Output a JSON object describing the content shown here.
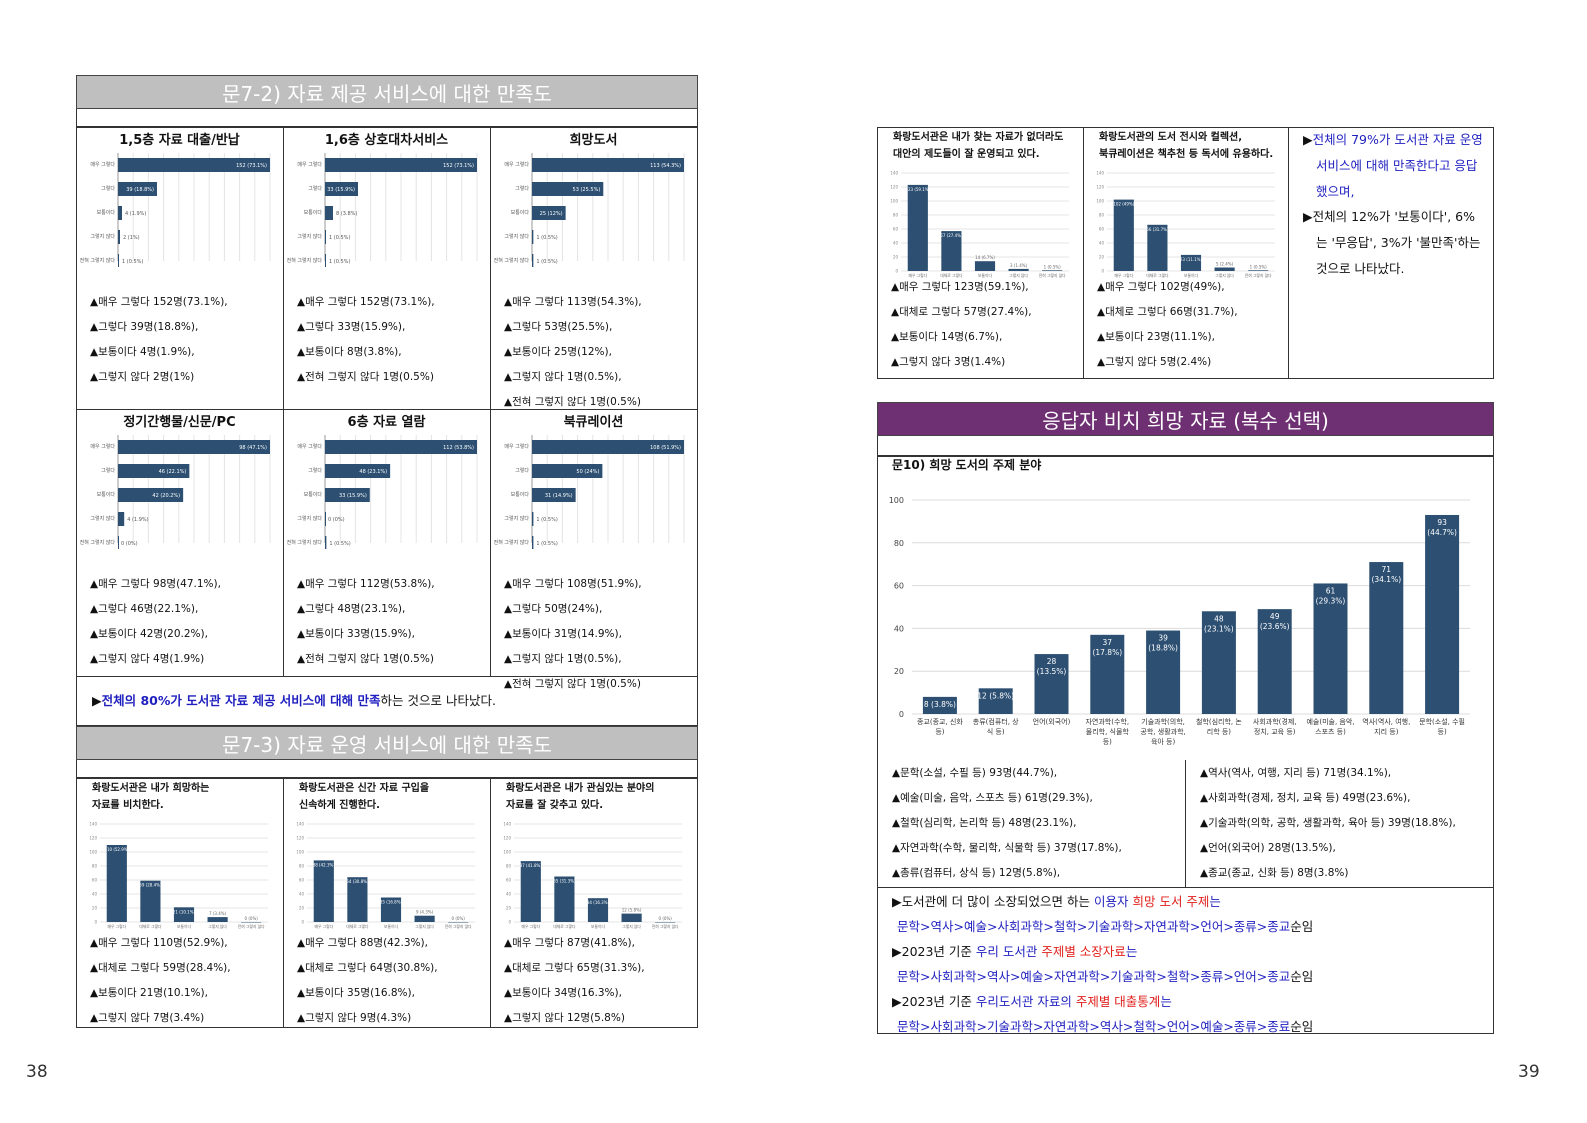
{
  "left": {
    "section1_title": "문7-2) 자료 제공 서비스에 대한 만족도",
    "hbar_charts": [
      {
        "title": "1,5층 자료 대출/반납",
        "cats": [
          "매우 그렇다",
          "그렇다",
          "보통이다",
          "그렇지 않다",
          "전혀 그렇지 않다"
        ],
        "values": [
          152,
          39,
          4,
          2,
          1
        ],
        "pct": [
          "73.1%",
          "18.8%",
          "1.9%",
          "1%",
          "0.5%"
        ],
        "max": 152,
        "stats": [
          "▲매우 그렇다 152명(73.1%),",
          "▲그렇다 39명(18.8%),",
          "▲보통이다 4명(1.9%),",
          "▲그렇지 않다 2명(1%)"
        ]
      },
      {
        "title": "1,6층 상호대차서비스",
        "cats": [
          "매우 그렇다",
          "그렇다",
          "보통이다",
          "그렇지 않다",
          "전혀 그렇지 않다"
        ],
        "values": [
          152,
          33,
          8,
          1,
          1
        ],
        "pct": [
          "73.1%",
          "15.9%",
          "3.8%",
          "0.5%",
          "0.5%"
        ],
        "max": 152,
        "stats": [
          "▲매우 그렇다 152명(73.1%),",
          "▲그렇다 33명(15.9%),",
          "▲보통이다 8명(3.8%),",
          "▲전혀 그렇지 않다 1명(0.5%)"
        ]
      },
      {
        "title": "희망도서",
        "cats": [
          "매우 그렇다",
          "그렇다",
          "보통이다",
          "그렇지 않다",
          "전혀 그렇지 않다"
        ],
        "values": [
          113,
          53,
          25,
          1,
          1
        ],
        "pct": [
          "54.3%",
          "25.5%",
          "12%",
          "0.5%",
          "0.5%"
        ],
        "max": 113,
        "stats": [
          "▲매우 그렇다 113명(54.3%),",
          "▲그렇다 53명(25.5%),",
          "▲보통이다 25명(12%),",
          "▲그렇지 않다 1명(0.5%),",
          "▲전혀 그렇지 않다 1명(0.5%)"
        ]
      },
      {
        "title": "정기간행물/신문/PC",
        "cats": [
          "매우 그렇다",
          "그렇다",
          "보통이다",
          "그렇지 않다",
          "전혀 그렇지 않다"
        ],
        "values": [
          98,
          46,
          42,
          4,
          0
        ],
        "pct": [
          "47.1%",
          "22.1%",
          "20.2%",
          "1.9%",
          "0%"
        ],
        "max": 98,
        "stats": [
          "▲매우 그렇다 98명(47.1%),",
          "▲그렇다 46명(22.1%),",
          "▲보통이다 42명(20.2%),",
          "▲그렇지 않다 4명(1.9%)"
        ]
      },
      {
        "title": "6층 자료 열람",
        "cats": [
          "매우 그렇다",
          "그렇다",
          "보통이다",
          "그렇지 않다",
          "전혀 그렇지 않다"
        ],
        "values": [
          112,
          48,
          33,
          0,
          1
        ],
        "pct": [
          "53.8%",
          "23.1%",
          "15.9%",
          "0%",
          "0.5%"
        ],
        "max": 112,
        "stats": [
          "▲매우 그렇다 112명(53.8%),",
          "▲그렇다 48명(23.1%),",
          "▲보통이다 33명(15.9%),",
          "▲전혀 그렇지 않다 1명(0.5%)"
        ]
      },
      {
        "title": "북큐레이션",
        "cats": [
          "매우 그렇다",
          "그렇다",
          "보통이다",
          "그렇지 않다",
          "전혀 그렇지 않다"
        ],
        "values": [
          108,
          50,
          31,
          1,
          1
        ],
        "pct": [
          "51.9%",
          "24%",
          "14.9%",
          "0.5%",
          "0.5%"
        ],
        "max": 108,
        "stats": [
          "▲매우 그렇다 108명(51.9%),",
          "▲그렇다 50명(24%),",
          "▲보통이다 31명(14.9%),",
          "▲그렇지 않다 1명(0.5%),",
          "▲전혀 그렇지 않다 1명(0.5%)"
        ]
      }
    ],
    "summary_prefix": "▶",
    "summary_blue": "전체의 80%가 도서관 자료 제공 서비스에 대해 만족",
    "summary_rest": "하는 것으로 나타났다.",
    "section2_title": "문7-3) 자료 운영 서비스에 대한 만족도",
    "vbar_charts": [
      {
        "title": [
          "화랑도서관은 내가 희망하는",
          "자료를 비치한다."
        ],
        "cats": [
          "매우 그렇다",
          "대체로 그렇다",
          "보통이다",
          "그렇지 않다",
          "전혀 그렇지 않다"
        ],
        "values": [
          110,
          59,
          21,
          7,
          0
        ],
        "pct": [
          "52.9%",
          "28.4%",
          "10.1%",
          "3.4%",
          "0%"
        ],
        "stats": [
          "▲매우 그렇다 110명(52.9%),",
          "▲대체로 그렇다 59명(28.4%),",
          "▲보통이다 21명(10.1%),",
          "▲그렇지 않다 7명(3.4%)"
        ]
      },
      {
        "title": [
          "화랑도서관은 신간 자료 구입을",
          "신속하게 진행한다."
        ],
        "cats": [
          "매우 그렇다",
          "대체로 그렇다",
          "보통이다",
          "그렇지 않다",
          "전혀 그렇지 않다"
        ],
        "values": [
          88,
          64,
          35,
          9,
          0
        ],
        "pct": [
          "42.3%",
          "30.8%",
          "16.8%",
          "4.3%",
          "0%"
        ],
        "stats": [
          "▲매우 그렇다 88명(42.3%),",
          "▲대체로 그렇다 64명(30.8%),",
          "▲보통이다 35명(16.8%),",
          "▲그렇지 않다 9명(4.3%)"
        ]
      },
      {
        "title": [
          "화랑도서관은 내가 관심있는 분야의",
          "자료를 잘 갖추고 있다."
        ],
        "cats": [
          "매우 그렇다",
          "대체로 그렇다",
          "보통이다",
          "그렇지 않다",
          "전혀 그렇지 않다"
        ],
        "values": [
          87,
          65,
          34,
          12,
          0
        ],
        "pct": [
          "41.8%",
          "31.3%",
          "16.3%",
          "5.8%",
          "0%"
        ],
        "stats": [
          "▲매우 그렇다 87명(41.8%),",
          "▲대체로 그렇다 65명(31.3%),",
          "▲보통이다 34명(16.3%),",
          "▲그렇지 않다 12명(5.8%)"
        ]
      }
    ],
    "page_number": "38"
  },
  "right": {
    "top_charts": [
      {
        "title": [
          "화랑도서관은 내가 찾는 자료가 없더라도",
          "대안의 제도들이 잘 운영되고 있다."
        ],
        "cats": [
          "매우 그렇다",
          "대체로 그렇다",
          "보통이다",
          "그렇지 않다",
          "전혀 그렇지 않다"
        ],
        "values": [
          123,
          57,
          14,
          3,
          1
        ],
        "pct": [
          "59.1%",
          "27.4%",
          "6.7%",
          "1.4%",
          "0.5%"
        ],
        "stats": [
          "▲매우 그렇다 123명(59.1%),",
          "▲대체로 그렇다 57명(27.4%),",
          "▲보통이다 14명(6.7%),",
          "▲그렇지 않다 3명(1.4%)"
        ]
      },
      {
        "title": [
          "화랑도서관의 도서 전시와 컬렉션,",
          "북큐레이션은 책추천 등 독서에 유용하다."
        ],
        "cats": [
          "매우 그렇다",
          "대체로 그렇다",
          "보통이다",
          "그렇지 않다",
          "전혀 그렇지 않다"
        ],
        "values": [
          102,
          66,
          23,
          5,
          1
        ],
        "pct": [
          "49%",
          "31.7%",
          "11.1%",
          "2.4%",
          "0.5%"
        ],
        "stats": [
          "▲매우 그렇다 102명(49%),",
          "▲대체로 그렇다 66명(31.7%),",
          "▲보통이다 23명(11.1%),",
          "▲그렇지 않다 5명(2.4%)"
        ]
      }
    ],
    "top_note": {
      "line1_prefix": "▶",
      "line1_blue": "전체의 79%가 도서관 자료 운영",
      "line2_blue": "서비스에 대해 만족한다고 응답",
      "line3_blue": "했으며,",
      "line4": "▶전체의 12%가 '보통이다', 6%",
      "line5": "는 '무응답', 3%가 '불만족'하는",
      "line6": "것으로 나타났다."
    },
    "section3_title": "응답자 비치 희망 자료 (복수 선택)",
    "chart_title": "문10) 희망 도서의 주제 분야",
    "chart_data": {
      "type": "bar",
      "categories": [
        [
          "종교(종교, 신화",
          "등)"
        ],
        [
          "총류(컴퓨터, 상",
          "식 등)"
        ],
        [
          "언어(외국어)"
        ],
        [
          "자연과학(수학,",
          "물리학, 식물학",
          "등)"
        ],
        [
          "기술과학(의학,",
          "공학, 생활과학,",
          "육아 등)"
        ],
        [
          "철학(심리학, 논",
          "리학 등)"
        ],
        [
          "사회과학(경제,",
          "정치, 교육 등)"
        ],
        [
          "예술(미술, 음악,",
          "스포츠 등)"
        ],
        [
          "역사(역사, 여행,",
          "지리 등)"
        ],
        [
          "문학(소설, 수필",
          "등)"
        ]
      ],
      "values": [
        8,
        12,
        28,
        37,
        39,
        48,
        49,
        61,
        71,
        93
      ],
      "labels": [
        [
          "8 (3.8%)"
        ],
        [
          "12 (5.8%)"
        ],
        [
          "28",
          "(13.5%)"
        ],
        [
          "37",
          "(17.8%)"
        ],
        [
          "39",
          "(18.8%)"
        ],
        [
          "48",
          "(23.1%)"
        ],
        [
          "49",
          "(23.6%)"
        ],
        [
          "61",
          "(29.3%)"
        ],
        [
          "71",
          "(34.1%)"
        ],
        [
          "93",
          "(44.7%)"
        ]
      ],
      "ylim": [
        0,
        100
      ],
      "yticks": [
        "0",
        "20",
        "40",
        "60",
        "80",
        "100"
      ],
      "grid": true,
      "bar_color": "#2c4f72"
    },
    "stats_left": [
      "▲문학(소설, 수필 등) 93명(44.7%),",
      "▲예술(미술, 음악, 스포츠 등) 61명(29.3%),",
      "▲철학(심리학, 논리학 등) 48명(23.1%),",
      "▲자연과학(수학, 물리학, 식물학 등) 37명(17.8%),",
      "▲총류(컴퓨터, 상식 등) 12명(5.8%),"
    ],
    "stats_right": [
      "▲역사(역사, 여행, 지리 등) 71명(34.1%),",
      "▲사회과학(경제, 정치, 교육 등) 49명(23.6%),",
      "▲기술과학(의학, 공학, 생활과학, 육아 등) 39명(18.8%),",
      "▲언어(외국어) 28명(13.5%),",
      "▲종교(종교, 신화 등) 8명(3.8%)"
    ],
    "bottom_notes": {
      "n1_a": "▶도서관에 더 많이 소장되었으면 하는 ",
      "n1_b": "이용자 ",
      "n1_c": "희망 도서 주제",
      "n1_d": "는",
      "n2": "문학>역사>예술>사회과학>철학>기술과학>자연과학>언어>종류>종교",
      "n2_end": "순임",
      "n3_a": "▶2023년 기준 ",
      "n3_b": "우리 도서관 ",
      "n3_c": "주제별 소장자료",
      "n3_d": "는",
      "n4": "문학>사회과학>역사>예술>자연과학>기술과학>철학>종류>언어>종교",
      "n4_end": "순임",
      "n5_a": "▶2023년 기준 ",
      "n5_b": "우리도서관 자료의 ",
      "n5_c": "주제별 대출통계",
      "n5_d": "는",
      "n6": "문학>사회과학>기술과학>자연과학>역사>철학>언어>예술>종류>종료",
      "n6_end": "순임"
    },
    "page_number": "39"
  },
  "colors": {
    "bar": "#2c4f72",
    "section_gray": "#bfbfbf",
    "section_purple": "#6f2f73",
    "blue_text": "#1f1fbf",
    "red_text": "#e0201c"
  }
}
